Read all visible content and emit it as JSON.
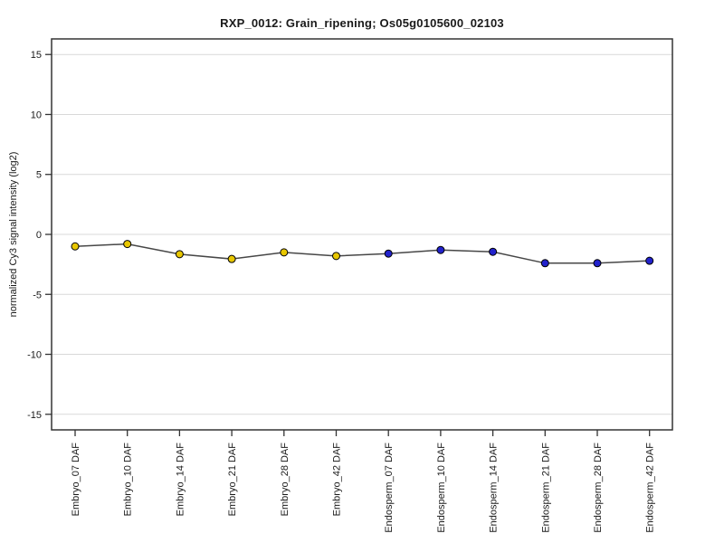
{
  "title": "RXP_0012: Grain_ripening; Os05g0105600_02103",
  "chart_data": {
    "type": "line",
    "title": "RXP_0012: Grain_ripening; Os05g0105600_02103",
    "xlabel": "",
    "ylabel": "normalized Cy3 signal intensity (log2)",
    "ylim": [
      -16.3,
      16.3
    ],
    "yticks": [
      15,
      10,
      5,
      0,
      -5,
      -10,
      -15
    ],
    "grid": true,
    "legend_position": "none",
    "categories": [
      "Embryo_07 DAF",
      "Embryo_10 DAF",
      "Embryo_14 DAF",
      "Embryo_21 DAF",
      "Embryo_28 DAF",
      "Embryo_42 DAF",
      "Endosperm_07 DAF",
      "Endosperm_10 DAF",
      "Endosperm_14 DAF",
      "Endosperm_21 DAF",
      "Endosperm_28 DAF",
      "Endosperm_42 DAF"
    ],
    "values": [
      -1.0,
      -0.8,
      -1.65,
      -2.05,
      -1.5,
      -1.8,
      -1.6,
      -1.3,
      -1.45,
      -2.4,
      -2.4,
      -2.2
    ],
    "point_groups": [
      {
        "name": "Embryo",
        "color": "#e8c700",
        "count": 6
      },
      {
        "name": "Endosperm",
        "color": "#2222cc",
        "count": 6
      }
    ],
    "colors": {
      "line": "#474747",
      "grid": "#d9d9d9",
      "border": "#333333",
      "tick": "#333333",
      "marker_outline": "#000000",
      "background": "#ffffff"
    }
  }
}
